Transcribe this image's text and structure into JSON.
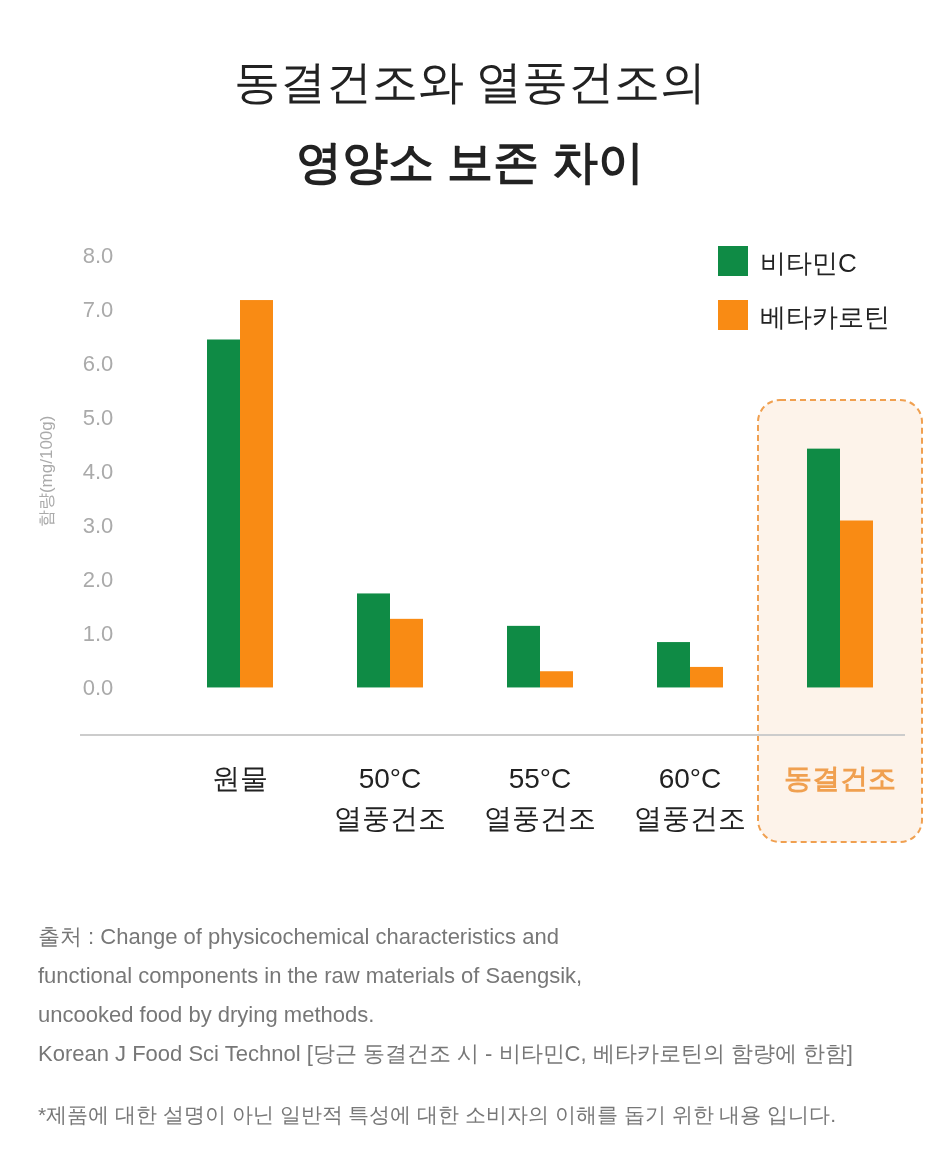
{
  "chart_data": {
    "type": "bar",
    "title": "동결건조와 열풍건조의",
    "subtitle": "영양소 보존 차이",
    "ylabel": "함량(mg/100g)",
    "categories": [
      "원물",
      "50°C\n열풍건조",
      "55°C\n열풍건조",
      "60°C\n열풍건조",
      "동결건조"
    ],
    "series": [
      {
        "name": "비타민C",
        "color": "#0f8b45",
        "values": [
          6.44,
          1.74,
          1.14,
          0.84,
          4.42
        ]
      },
      {
        "name": "베타카로틴",
        "color": "#f98b14",
        "values": [
          7.17,
          1.27,
          0.3,
          0.38,
          3.09
        ]
      }
    ],
    "ylim": [
      -0.88,
      8.3
    ],
    "yticks": [
      {
        "value": 0,
        "label": "0.0"
      },
      {
        "value": 1,
        "label": "1.0"
      },
      {
        "value": 2,
        "label": "2.0"
      },
      {
        "value": 3,
        "label": "3.0"
      },
      {
        "value": 4,
        "label": "4.0"
      },
      {
        "value": 5,
        "label": "5.0"
      },
      {
        "value": 6,
        "label": "6.0"
      },
      {
        "value": 7,
        "label": "7.0"
      },
      {
        "value": 8,
        "label": "8.0"
      }
    ],
    "bands": [
      {
        "axis": "x",
        "from": "동결건조",
        "to": "동결건조",
        "color": "#f0a050"
      }
    ],
    "legend": "top right",
    "grid": false,
    "annotations": [
      "출처 : Change of physicochemical characteristics and\nfunctional components in the raw materials of Saengsik,\nuncooked food by drying methods.\nKorean J Food Sci Technol [당근 동결건조 시 - 비타민C, 베타카로틴의 함량에 한함]",
      "*제품에 대한 설명이 아닌 일반적 특성에 대한 소비자의 이해를 돕기 위한 내용 입니다."
    ]
  }
}
